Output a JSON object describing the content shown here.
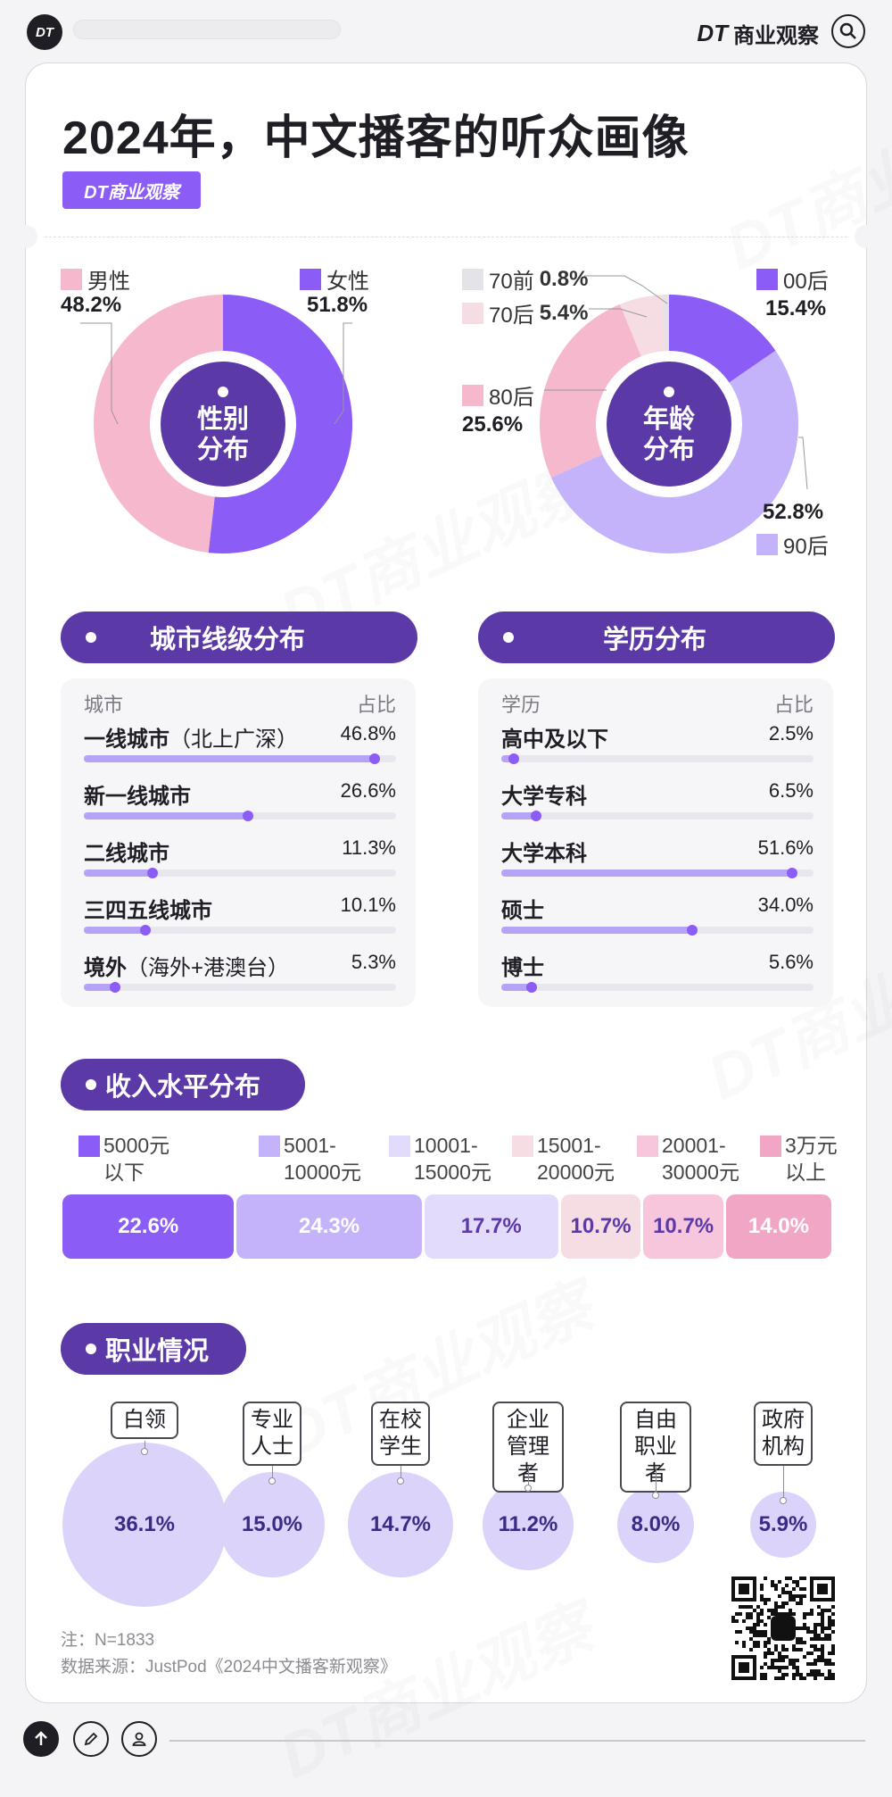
{
  "app": {
    "logo": "DT",
    "brand_dt": "DT",
    "brand_name": "商业观察"
  },
  "header": {
    "title": "2024年，中文播客的听众画像",
    "badge": "DT商业观察"
  },
  "gender": {
    "center_line1": "性别",
    "center_line2": "分布",
    "male_label": "男性",
    "male_value": "48.2%",
    "female_label": "女性",
    "female_value": "51.8%"
  },
  "age": {
    "center_line1": "年龄",
    "center_line2": "分布",
    "items": [
      {
        "label": "00后",
        "value": "15.4%"
      },
      {
        "label": "90后",
        "value": "52.8%"
      },
      {
        "label": "80后",
        "value": "25.6%"
      },
      {
        "label": "70后",
        "value": "5.4%"
      },
      {
        "label": "70前",
        "value": "0.8%"
      }
    ]
  },
  "city": {
    "title": "城市线级分布",
    "col1": "城市",
    "col2": "占比",
    "rows": [
      {
        "label": "一线城市",
        "sub": "（北上广深）",
        "value": "46.8%"
      },
      {
        "label": "新一线城市",
        "sub": "",
        "value": "26.6%"
      },
      {
        "label": "二线城市",
        "sub": "",
        "value": "11.3%"
      },
      {
        "label": "三四五线城市",
        "sub": "",
        "value": "10.1%"
      },
      {
        "label": "境外",
        "sub": "（海外+港澳台）",
        "value": "5.3%"
      }
    ]
  },
  "edu": {
    "title": "学历分布",
    "col1": "学历",
    "col2": "占比",
    "rows": [
      {
        "label": "高中及以下",
        "sub": "",
        "value": "2.5%"
      },
      {
        "label": "大学专科",
        "sub": "",
        "value": "6.5%"
      },
      {
        "label": "大学本科",
        "sub": "",
        "value": "51.6%"
      },
      {
        "label": "硕士",
        "sub": "",
        "value": "34.0%"
      },
      {
        "label": "博士",
        "sub": "",
        "value": "5.6%"
      }
    ]
  },
  "income": {
    "title": "收入水平分布",
    "legend": [
      {
        "line1": "5000元",
        "line2": "以下"
      },
      {
        "line1": "5001-",
        "line2": "10000元"
      },
      {
        "line1": "10001-",
        "line2": "15000元"
      },
      {
        "line1": "15001-",
        "line2": "20000元"
      },
      {
        "line1": "20001-",
        "line2": "30000元"
      },
      {
        "line1": "3万元",
        "line2": "以上"
      }
    ],
    "values": [
      "22.6%",
      "24.3%",
      "17.7%",
      "10.7%",
      "10.7%",
      "14.0%"
    ]
  },
  "jobs": {
    "title": "职业情况",
    "items": [
      {
        "line1": "白领",
        "line2": "",
        "value": "36.1%"
      },
      {
        "line1": "专业",
        "line2": "人士",
        "value": "15.0%"
      },
      {
        "line1": "在校",
        "line2": "学生",
        "value": "14.7%"
      },
      {
        "line1": "企业",
        "line2": "管理者",
        "value": "11.2%"
      },
      {
        "line1": "自由",
        "line2": "职业者",
        "value": "8.0%"
      },
      {
        "line1": "政府",
        "line2": "机构",
        "value": "5.9%"
      }
    ]
  },
  "notes": {
    "n": "注：N=1833",
    "source": "数据来源：JustPod《2024中文播客新观察》"
  },
  "watermark": "DT商业观察",
  "colors": {
    "purple_dark": "#5b3aa8",
    "purple": "#8b5cf6",
    "lavender": "#c4b2fa",
    "pink": "#f5b8cc",
    "pale_pink": "#f5dde3",
    "grey": "#e4e4e8",
    "income": [
      "#8b5cf6",
      "#c4b2fa",
      "#e2dbfc",
      "#f5dde3",
      "#f7c6dc",
      "#f0a6c4"
    ]
  },
  "chart_data": [
    {
      "type": "pie",
      "title": "性别分布",
      "categories": [
        "男性",
        "女性"
      ],
      "values": [
        48.2,
        51.8
      ],
      "unit": "%"
    },
    {
      "type": "pie",
      "title": "年龄分布",
      "categories": [
        "00后",
        "90后",
        "80后",
        "70后",
        "70前"
      ],
      "values": [
        15.4,
        52.8,
        25.6,
        5.4,
        0.8
      ],
      "unit": "%"
    },
    {
      "type": "bar",
      "title": "城市线级分布",
      "categories": [
        "一线城市（北上广深）",
        "新一线城市",
        "二线城市",
        "三四五线城市",
        "境外（海外+港澳台）"
      ],
      "values": [
        46.8,
        26.6,
        11.3,
        10.1,
        5.3
      ],
      "unit": "%",
      "xlim": [
        0,
        50
      ]
    },
    {
      "type": "bar",
      "title": "学历分布",
      "categories": [
        "高中及以下",
        "大学专科",
        "大学本科",
        "硕士",
        "博士"
      ],
      "values": [
        2.5,
        6.5,
        51.6,
        34.0,
        5.6
      ],
      "unit": "%",
      "xlim": [
        0,
        55
      ]
    },
    {
      "type": "bar",
      "title": "收入水平分布",
      "categories": [
        "5000元以下",
        "5001-10000元",
        "10001-15000元",
        "15001-20000元",
        "20001-30000元",
        "3万元以上"
      ],
      "values": [
        22.6,
        24.3,
        17.7,
        10.7,
        10.7,
        14.0
      ],
      "unit": "%"
    },
    {
      "type": "scatter",
      "title": "职业情况",
      "categories": [
        "白领",
        "专业人士",
        "在校学生",
        "企业管理者",
        "自由职业者",
        "政府机构"
      ],
      "values": [
        36.1,
        15.0,
        14.7,
        11.2,
        8.0,
        5.9
      ],
      "unit": "%"
    }
  ]
}
